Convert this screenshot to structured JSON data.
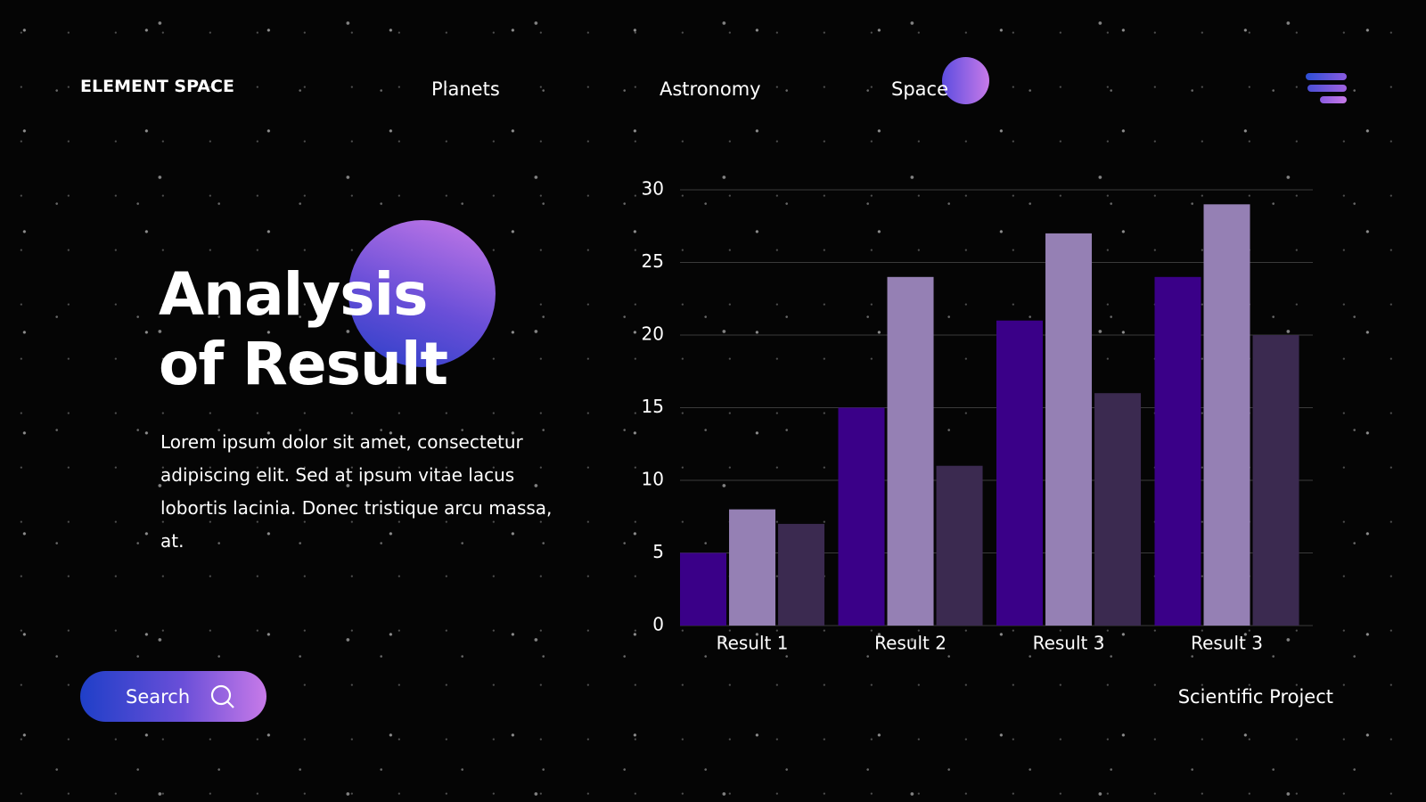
{
  "nav": {
    "brand": "ELEMENT SPACE",
    "links": [
      "Planets",
      "Astronomy",
      "Space"
    ]
  },
  "hero": {
    "title": [
      "Analysis",
      "of Result"
    ],
    "body": "Lorem ipsum dolor sit amet, consectetur adipiscing elit. Sed at ipsum vitae lacus lobortis lacinia. Donec tristique arcu massa, at.",
    "button": "Search"
  },
  "footer": "Scientific Project",
  "chart_data": {
    "type": "bar",
    "categories": [
      "Result 1",
      "Result 2",
      "Result 3",
      "Result 3"
    ],
    "series": [
      {
        "color": "#3a0088",
        "values": [
          5,
          15,
          21,
          24
        ]
      },
      {
        "color": "#9580b4",
        "values": [
          8,
          24,
          27,
          29
        ]
      },
      {
        "color": "#3b2a50",
        "values": [
          7,
          11,
          16,
          20
        ]
      }
    ],
    "ylim": [
      0,
      30
    ],
    "yticks": [
      0,
      5,
      10,
      15,
      20,
      25,
      30
    ],
    "grid": true
  }
}
